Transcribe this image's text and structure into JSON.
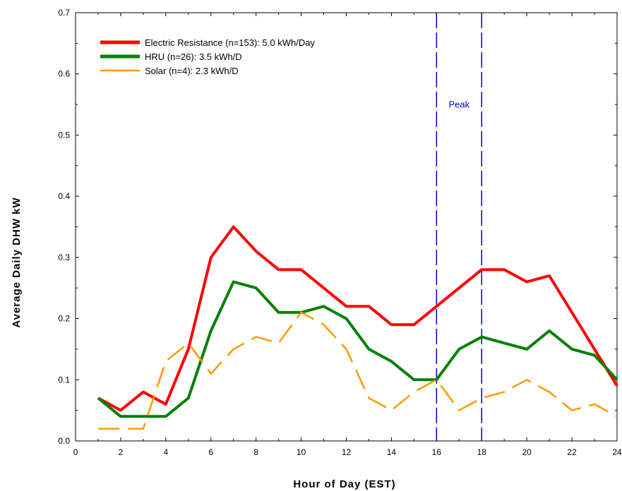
{
  "chart_data": {
    "type": "line",
    "xlabel": "Hour of Day (EST)",
    "ylabel": "Average Daily DHW kW",
    "xlim": [
      0,
      24
    ],
    "ylim": [
      0,
      0.7
    ],
    "x_ticks": [
      "0",
      "2",
      "4",
      "6",
      "8",
      "10",
      "12",
      "14",
      "16",
      "18",
      "20",
      "22",
      "24"
    ],
    "y_ticks": [
      "0.0",
      "0.1",
      "0.2",
      "0.3",
      "0.4",
      "0.5",
      "0.6",
      "0.7"
    ],
    "grid": false,
    "legend_position": "top-left",
    "x": [
      1,
      2,
      3,
      4,
      5,
      6,
      7,
      8,
      9,
      10,
      11,
      12,
      13,
      14,
      15,
      16,
      17,
      18,
      19,
      20,
      21,
      22,
      23,
      24
    ],
    "series": [
      {
        "name": "Electric Resistance (n=153): 5.0 kWh/Day",
        "color": "#ff0000",
        "style": "solid",
        "values": [
          0.07,
          0.05,
          0.08,
          0.06,
          0.15,
          0.3,
          0.35,
          0.31,
          0.28,
          0.28,
          0.25,
          0.22,
          0.22,
          0.19,
          0.19,
          0.22,
          0.25,
          0.28,
          0.28,
          0.26,
          0.27,
          0.21,
          0.15,
          0.09
        ]
      },
      {
        "name": "HRU (n=26): 3.5 kWh/D",
        "color": "#008000",
        "style": "solid",
        "values": [
          0.07,
          0.04,
          0.04,
          0.04,
          0.07,
          0.18,
          0.26,
          0.25,
          0.21,
          0.21,
          0.22,
          0.2,
          0.15,
          0.13,
          0.1,
          0.1,
          0.15,
          0.17,
          0.16,
          0.15,
          0.18,
          0.15,
          0.14,
          0.1
        ]
      },
      {
        "name": "Solar (n=4): 2.3 kWh/D",
        "color": "#ff9900",
        "style": "dashed",
        "values": [
          0.02,
          0.02,
          0.02,
          0.13,
          0.16,
          0.11,
          0.15,
          0.17,
          0.16,
          0.21,
          0.19,
          0.15,
          0.07,
          0.05,
          0.08,
          0.1,
          0.05,
          0.07,
          0.08,
          0.1,
          0.08,
          0.05,
          0.06,
          0.04
        ]
      }
    ],
    "vertical_lines": [
      {
        "x": 16,
        "color": "#0000cc",
        "style": "dashed"
      },
      {
        "x": 18,
        "color": "#0000cc",
        "style": "dashed"
      }
    ],
    "annotations": [
      {
        "text": "Peak",
        "x": 17,
        "y": 0.545,
        "color": "#0000cc"
      }
    ]
  }
}
